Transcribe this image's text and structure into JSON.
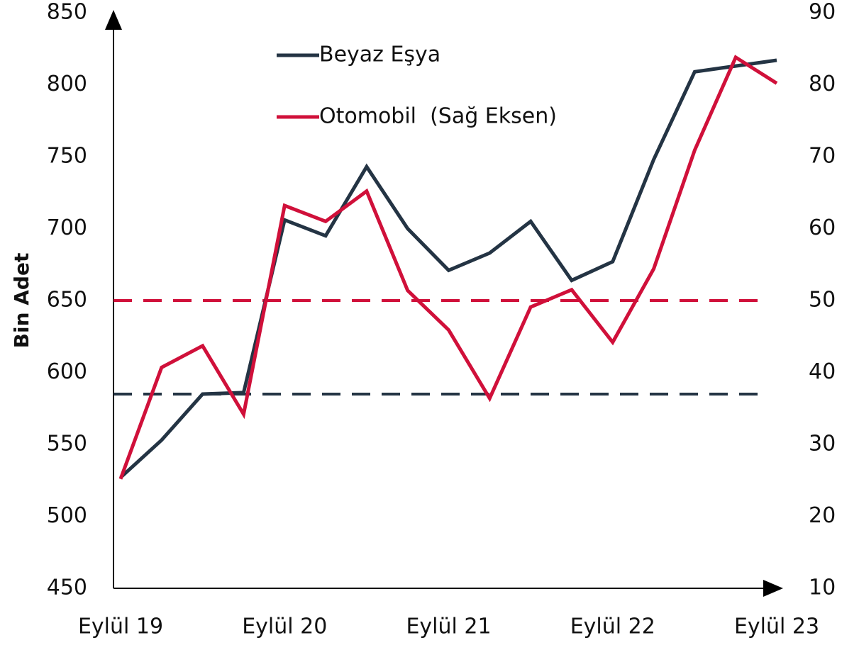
{
  "chart_data": {
    "type": "line",
    "categories": [
      "Eylül 19",
      null,
      null,
      null,
      "Eylül 20",
      null,
      null,
      null,
      "Eylül 21",
      null,
      null,
      null,
      "Eylül 22",
      null,
      null,
      null,
      "Eylül 23"
    ],
    "series": [
      {
        "name": "Beyaz Eşya",
        "color": "#243444",
        "values": [
          527,
          553,
          585,
          586,
          706,
          695,
          743,
          700,
          671,
          683,
          705,
          664,
          677,
          748,
          809,
          813,
          817
        ]
      },
      {
        "name": "Otomobil  (Sağ Eksen)",
        "color": "#d0103a",
        "axis": "y2",
        "values": [
          25.2,
          40.7,
          43.7,
          34.2,
          63.2,
          61.0,
          65.2,
          51.4,
          45.9,
          36.4,
          49.1,
          51.5,
          44.2,
          54.4,
          70.9,
          83.8,
          80.2
        ]
      }
    ],
    "reference_lines": [
      {
        "value": 585,
        "color": "#243444"
      },
      {
        "value": 50,
        "color": "#d0103a",
        "axis": "y2"
      }
    ],
    "ylabel": "Bin Adet",
    "ylim": [
      450,
      850
    ],
    "yticks": [
      450,
      500,
      550,
      600,
      650,
      700,
      750,
      800,
      850
    ],
    "y2lim": [
      10,
      90
    ],
    "y2ticks": [
      10,
      20,
      30,
      40,
      50,
      60,
      70,
      80,
      90
    ],
    "grid": false,
    "legend": "top"
  }
}
